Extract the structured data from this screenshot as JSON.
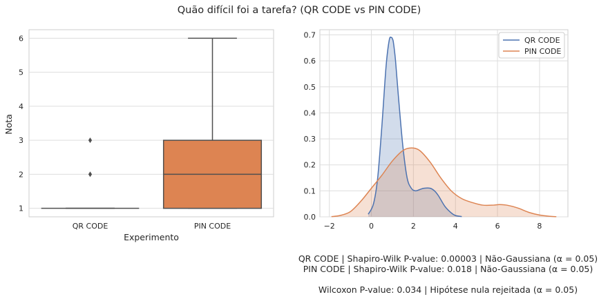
{
  "figure": {
    "suptitle": "Quão difícil foi a tarefa? (QR CODE vs PIN CODE)",
    "annotations": {
      "line1": "QR CODE | Shapiro-Wilk P-value: 0.00003 | Não-Gaussiana (α = 0.05)",
      "line2": "PIN CODE | Shapiro-Wilk P-value: 0.018 | Não-Gaussiana (α = 0.05)",
      "line3": "Wilcoxon P-value: 0.034 | Hipótese nula rejeitada (α = 0.05)"
    }
  },
  "chart_data": [
    {
      "type": "box",
      "xlabel": "Experimento",
      "ylabel": "Nota",
      "ylim": [
        0.75,
        6.25
      ],
      "yticks": [
        1,
        2,
        3,
        4,
        5,
        6
      ],
      "grid": true,
      "categories": [
        "QR CODE",
        "PIN CODE"
      ],
      "boxes": [
        {
          "name": "QR CODE",
          "min": 1,
          "q1": 1,
          "median": 1,
          "q3": 1,
          "max": 1,
          "outliers": [
            2,
            3
          ],
          "color": "#4c72b0"
        },
        {
          "name": "PIN CODE",
          "min": 1,
          "q1": 1,
          "median": 2,
          "q3": 3,
          "max": 6,
          "outliers": [],
          "color": "#dd8452"
        }
      ]
    },
    {
      "type": "area",
      "xlim": [
        -2.45,
        9.35
      ],
      "ylim": [
        0,
        0.72
      ],
      "xticks": [
        -2,
        0,
        2,
        4,
        6,
        8
      ],
      "yticks": [
        0.0,
        0.1,
        0.2,
        0.3,
        0.4,
        0.5,
        0.6,
        0.7
      ],
      "grid": true,
      "legend": "top-right",
      "series": [
        {
          "name": "QR CODE",
          "color": "#4c72b0",
          "x": [
            -0.15,
            0.1,
            0.3,
            0.5,
            0.7,
            0.85,
            0.95,
            1.0,
            1.05,
            1.15,
            1.3,
            1.5,
            1.7,
            1.9,
            2.1,
            2.3,
            2.5,
            2.8,
            3.0,
            3.2,
            3.5,
            3.8,
            4.0,
            4.3
          ],
          "y": [
            0.01,
            0.05,
            0.15,
            0.35,
            0.58,
            0.68,
            0.69,
            0.685,
            0.67,
            0.6,
            0.45,
            0.27,
            0.15,
            0.11,
            0.1,
            0.105,
            0.11,
            0.11,
            0.1,
            0.08,
            0.04,
            0.015,
            0.005,
            0.001
          ]
        },
        {
          "name": "PIN CODE",
          "color": "#dd8452",
          "x": [
            -1.9,
            -1.5,
            -1.0,
            -0.5,
            0.0,
            0.5,
            1.0,
            1.5,
            1.9,
            2.3,
            2.8,
            3.3,
            3.8,
            4.3,
            4.8,
            5.3,
            5.8,
            6.1,
            6.5,
            7.0,
            7.5,
            8.0,
            8.5,
            8.8
          ],
          "y": [
            0.001,
            0.005,
            0.02,
            0.06,
            0.11,
            0.16,
            0.215,
            0.255,
            0.265,
            0.255,
            0.21,
            0.15,
            0.1,
            0.07,
            0.055,
            0.045,
            0.045,
            0.047,
            0.044,
            0.033,
            0.017,
            0.007,
            0.002,
            0.0005
          ]
        }
      ]
    }
  ]
}
